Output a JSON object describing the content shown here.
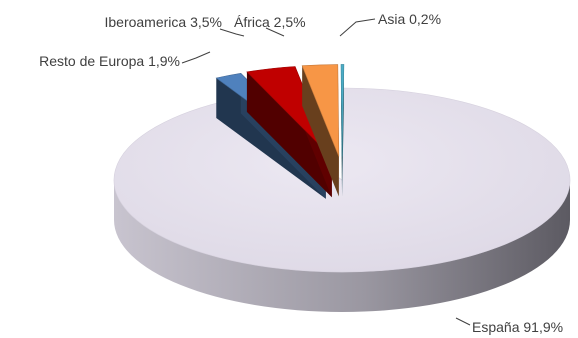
{
  "chart_data": {
    "type": "pie",
    "style": "3d-exploded",
    "title": "",
    "slices": [
      {
        "label": "España",
        "value": 91.9,
        "value_text": "91,9%",
        "color": "#e4dfec",
        "exploded": false
      },
      {
        "label": "Resto de Europa",
        "value": 1.9,
        "value_text": "1,9%",
        "color": "#4f81bd",
        "exploded": true
      },
      {
        "label": "Iberoamerica",
        "value": 3.5,
        "value_text": "3,5%",
        "color": "#c00000",
        "exploded": true
      },
      {
        "label": "África",
        "value": 2.5,
        "value_text": "2,5%",
        "color": "#f79646",
        "exploded": true
      },
      {
        "label": "Asia",
        "value": 0.2,
        "value_text": "0,2%",
        "color": "#4bacc6",
        "exploded": true
      }
    ],
    "legend": "none",
    "data_labels": "outside-with-leader-lines"
  }
}
